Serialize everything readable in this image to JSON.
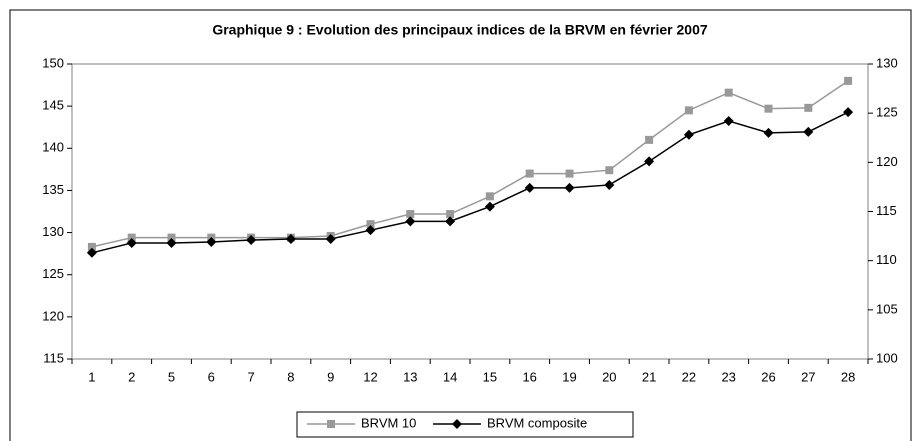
{
  "chart_data": {
    "type": "line",
    "title": "Graphique 9 : Evolution des principaux indices de la BRVM en février 2007",
    "categories": [
      "1",
      "2",
      "5",
      "6",
      "7",
      "8",
      "9",
      "12",
      "13",
      "14",
      "15",
      "16",
      "19",
      "20",
      "21",
      "22",
      "23",
      "26",
      "27",
      "28"
    ],
    "series": [
      {
        "name": "BRVM 10",
        "color": "#999999",
        "marker": "square",
        "values": [
          128.3,
          129.4,
          129.4,
          129.4,
          129.4,
          129.4,
          129.6,
          131.0,
          132.2,
          132.2,
          134.3,
          137.0,
          137.0,
          137.4,
          141.0,
          144.5,
          146.6,
          144.7,
          144.8,
          148.0
        ]
      },
      {
        "name": "BRVM composite",
        "color": "#000000",
        "marker": "diamond",
        "axis": "y2",
        "values": [
          110.8,
          111.8,
          111.8,
          111.9,
          112.1,
          112.2,
          112.2,
          113.1,
          114.0,
          114.0,
          115.5,
          117.4,
          117.4,
          117.7,
          120.1,
          122.8,
          124.2,
          123.0,
          123.1,
          125.1
        ]
      }
    ],
    "ylim": [
      115,
      150
    ],
    "yticks": [
      115,
      120,
      125,
      130,
      135,
      140,
      145,
      150
    ],
    "y2lim": [
      100,
      130
    ],
    "y2ticks": [
      100,
      105,
      110,
      115,
      120,
      125,
      130
    ],
    "grid": false,
    "legend": "bottom"
  }
}
